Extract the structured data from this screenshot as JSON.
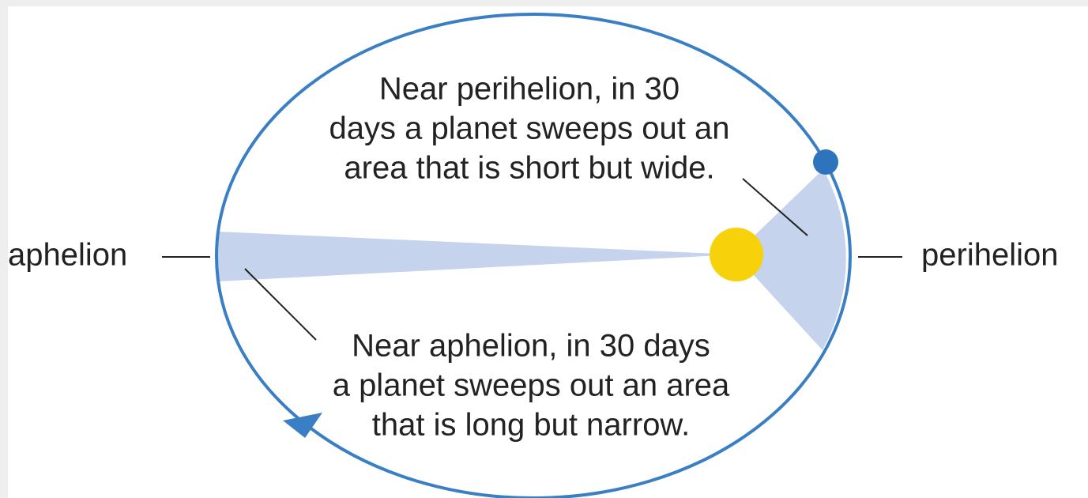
{
  "labels": {
    "aphelion": "aphelion",
    "perihelion": "perihelion"
  },
  "perihelion_note": {
    "lines": [
      "Near perihelion, in 30",
      "days a planet sweeps out an",
      "area that is short but wide."
    ]
  },
  "aphelion_note": {
    "lines": [
      "Near aphelion, in 30 days",
      "a planet sweeps out an area",
      "that is long but narrow."
    ]
  }
}
